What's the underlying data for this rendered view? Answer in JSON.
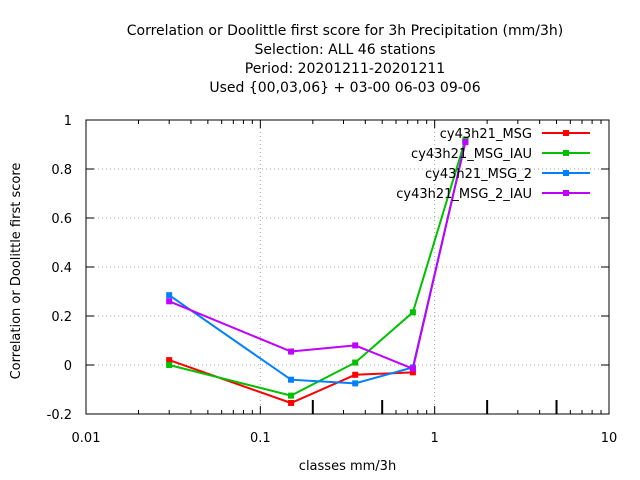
{
  "chart_data": {
    "type": "line",
    "title_lines": [
      "Correlation or Doolittle first score  for 3h Precipitation (mm/3h)",
      "Selection: ALL     46 stations",
      "Period: 20201211-20201211",
      "Used {00,03,06} + 03-00 06-03 09-06"
    ],
    "xlabel": "classes mm/3h",
    "ylabel": "Correlation or Doolittle first score",
    "x_scale": "log",
    "xlim": [
      0.01,
      10
    ],
    "ylim": [
      -0.2,
      1
    ],
    "x_ticks": [
      {
        "value": 0.01,
        "label": "0.01"
      },
      {
        "value": 0.1,
        "label": "0.1"
      },
      {
        "value": 1,
        "label": "1"
      },
      {
        "value": 10,
        "label": "10"
      }
    ],
    "x_minor_ticks": [
      0.02,
      0.03,
      0.04,
      0.05,
      0.06,
      0.07,
      0.08,
      0.09,
      0.2,
      0.3,
      0.4,
      0.5,
      0.6,
      0.7,
      0.8,
      0.9,
      2,
      3,
      4,
      5,
      6,
      7,
      8,
      9
    ],
    "x_extra_tall_ticks": [
      0.2,
      0.5,
      2,
      5
    ],
    "y_ticks": [
      {
        "value": -0.2,
        "label": "-0.2"
      },
      {
        "value": 0,
        "label": "0"
      },
      {
        "value": 0.2,
        "label": "0.2"
      },
      {
        "value": 0.4,
        "label": "0.4"
      },
      {
        "value": 0.6,
        "label": "0.6"
      },
      {
        "value": 0.8,
        "label": "0.8"
      },
      {
        "value": 1,
        "label": "1"
      }
    ],
    "grid": true,
    "legend_position": "top-right",
    "series": [
      {
        "name": "cy43h21_MSG",
        "color": "#ff0000",
        "x": [
          0.03,
          0.15,
          0.35,
          0.75
        ],
        "y": [
          0.02,
          -0.155,
          -0.04,
          -0.03
        ]
      },
      {
        "name": "cy43h21_MSG_IAU",
        "color": "#00c000",
        "x": [
          0.03,
          0.15,
          0.35,
          0.75,
          1.5
        ],
        "y": [
          0.0,
          -0.125,
          0.01,
          0.215,
          0.92
        ]
      },
      {
        "name": "cy43h21_MSG_2",
        "color": "#0080ff",
        "x": [
          0.03,
          0.15,
          0.35,
          0.75,
          1.5
        ],
        "y": [
          0.285,
          -0.06,
          -0.075,
          -0.01,
          0.91
        ]
      },
      {
        "name": "cy43h21_MSG_2_IAU",
        "color": "#c000ff",
        "x": [
          0.03,
          0.15,
          0.35,
          0.75,
          1.5
        ],
        "y": [
          0.26,
          0.055,
          0.08,
          -0.015,
          0.91
        ]
      }
    ]
  }
}
